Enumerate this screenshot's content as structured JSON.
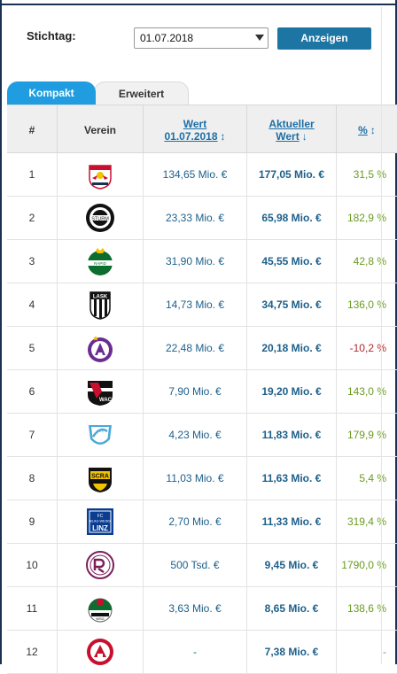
{
  "filter": {
    "label": "Stichtag:",
    "date_value": "01.07.2018",
    "button_label": "Anzeigen"
  },
  "tabs": [
    {
      "label": "Kompakt",
      "active": true
    },
    {
      "label": "Erweitert",
      "active": false
    }
  ],
  "table": {
    "headers": {
      "rank": "#",
      "club": "Verein",
      "wert_line1": "Wert",
      "wert_line2": "01.07.2018",
      "akt_line1": "Aktueller",
      "akt_line2": "Wert",
      "pct": "%"
    },
    "sort_icons": {
      "wert": "↕",
      "akt": "↓",
      "pct": "↕"
    },
    "rows": [
      {
        "rank": "1",
        "logo": "red-bull-salzburg-logo",
        "wert": "134,65 Mio. €",
        "akt": "177,05 Mio. €",
        "pct": "31,5 %",
        "trend": "pos"
      },
      {
        "rank": "2",
        "logo": "sturm-graz-logo",
        "wert": "23,33 Mio. €",
        "akt": "65,98 Mio. €",
        "pct": "182,9 %",
        "trend": "pos"
      },
      {
        "rank": "3",
        "logo": "rapid-wien-logo",
        "wert": "31,90 Mio. €",
        "akt": "45,55 Mio. €",
        "pct": "42,8 %",
        "trend": "pos"
      },
      {
        "rank": "4",
        "logo": "lask-logo",
        "wert": "14,73 Mio. €",
        "akt": "34,75 Mio. €",
        "pct": "136,0 %",
        "trend": "pos"
      },
      {
        "rank": "5",
        "logo": "austria-wien-logo",
        "wert": "22,48 Mio. €",
        "akt": "20,18 Mio. €",
        "pct": "-10,2 %",
        "trend": "neg"
      },
      {
        "rank": "6",
        "logo": "wolfsberger-ac-logo",
        "wert": "7,90 Mio. €",
        "akt": "19,20 Mio. €",
        "pct": "143,0 %",
        "trend": "pos"
      },
      {
        "rank": "7",
        "logo": "tsv-hartberg-logo",
        "wert": "4,23 Mio. €",
        "akt": "11,83 Mio. €",
        "pct": "179,9 %",
        "trend": "pos"
      },
      {
        "rank": "8",
        "logo": "scr-altach-logo",
        "wert": "11,03 Mio. €",
        "akt": "11,63 Mio. €",
        "pct": "5,4 %",
        "trend": "pos"
      },
      {
        "rank": "9",
        "logo": "blau-weiss-linz-logo",
        "wert": "2,70 Mio. €",
        "akt": "11,33 Mio. €",
        "pct": "319,4 %",
        "trend": "pos"
      },
      {
        "rank": "10",
        "logo": "admira-wacker-logo",
        "wert": "500 Tsd. €",
        "akt": "9,45 Mio. €",
        "pct": "1790,0 %",
        "trend": "pos"
      },
      {
        "rank": "11",
        "logo": "wsg-tirol-logo",
        "wert": "3,63 Mio. €",
        "akt": "8,65 Mio. €",
        "pct": "138,6 %",
        "trend": "pos"
      },
      {
        "rank": "12",
        "logo": "sv-ried-logo",
        "wert": "-",
        "akt": "7,38 Mio. €",
        "pct": "-",
        "trend": "zero"
      }
    ]
  }
}
